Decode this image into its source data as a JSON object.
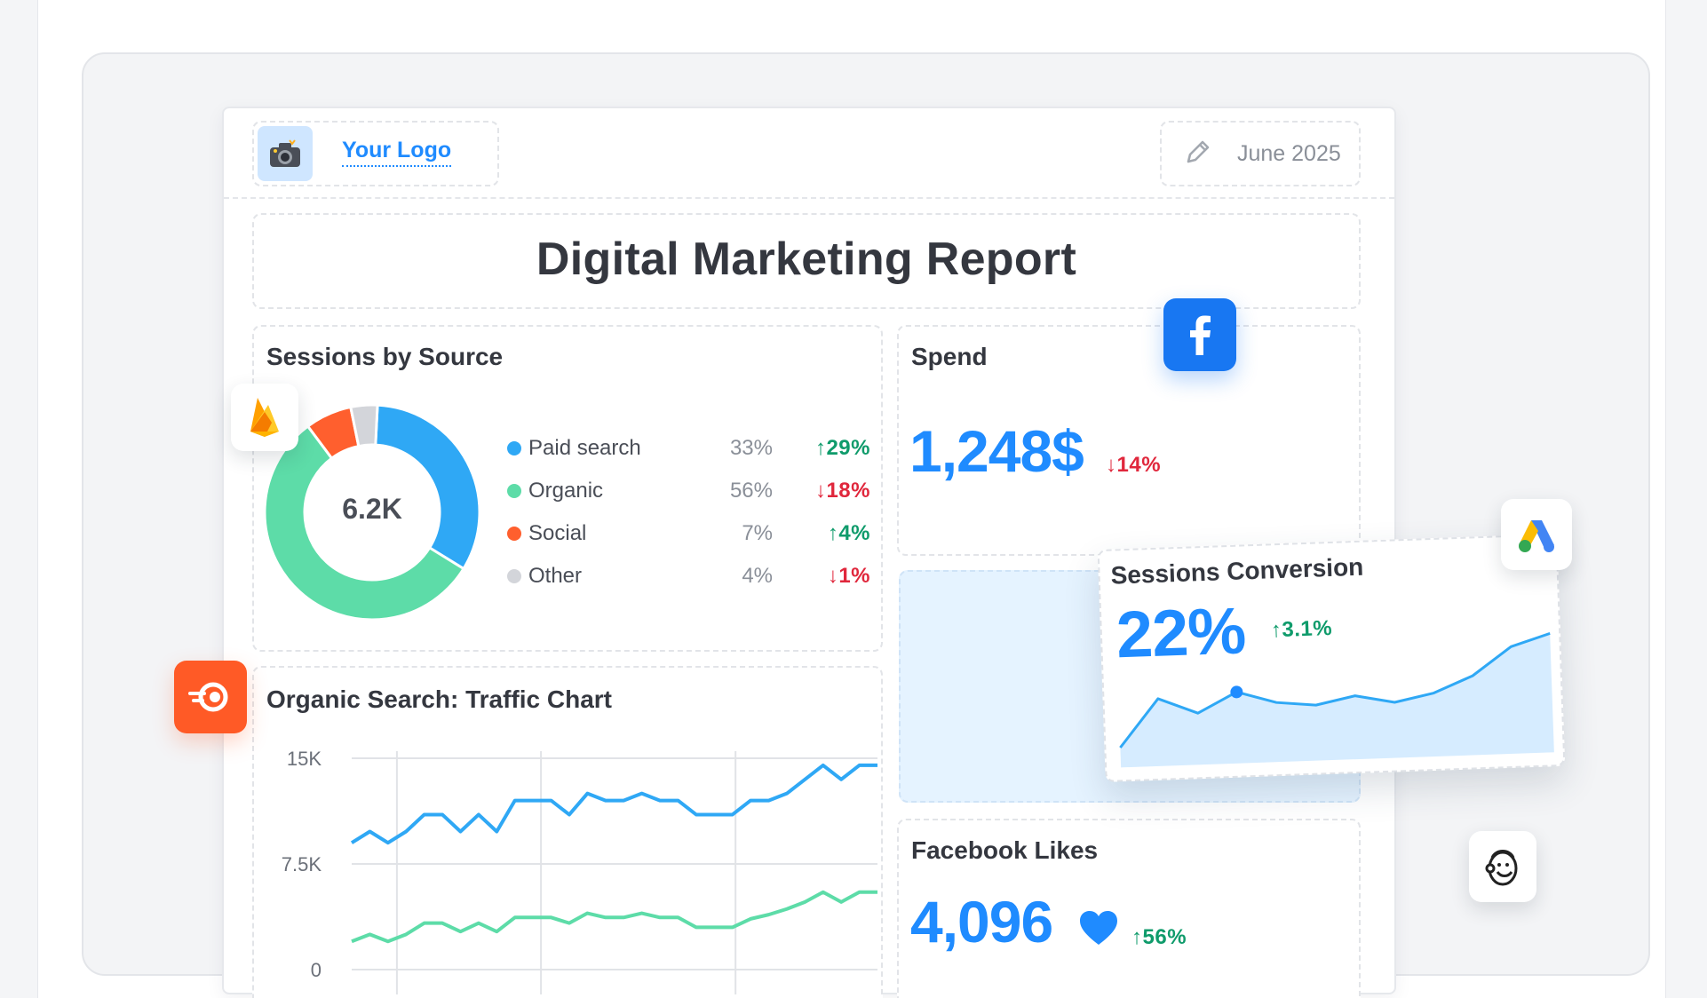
{
  "header": {
    "logo_label": "Your Logo",
    "logo_icon": "camera-icon",
    "date_icon": "pencil-icon",
    "date": "June 2025"
  },
  "title": "Digital Marketing Report",
  "sessions": {
    "title": "Sessions by Source",
    "total": "6.2K",
    "items": [
      {
        "name": "Paid search",
        "share": "33%",
        "change": "29%",
        "direction": "up",
        "color": "#2fa8f5",
        "fraction": 0.33
      },
      {
        "name": "Organic",
        "share": "56%",
        "change": "18%",
        "direction": "down",
        "color": "#5ddca8",
        "fraction": 0.56
      },
      {
        "name": "Social",
        "share": "7%",
        "change": "4%",
        "direction": "up",
        "color": "#ff5f2e",
        "fraction": 0.07
      },
      {
        "name": "Other",
        "share": "4%",
        "change": "1%",
        "direction": "down",
        "color": "#d3d5da",
        "fraction": 0.04
      }
    ]
  },
  "spend": {
    "title": "Spend",
    "value": "1,248$",
    "change": "14%",
    "direction": "down"
  },
  "conversion": {
    "title": "Sessions Conversion",
    "value": "22%",
    "change": "3.1%",
    "direction": "up"
  },
  "likes": {
    "title": "Facebook Likes",
    "value": "4,096",
    "change": "56%",
    "direction": "up",
    "icon": "heart-icon"
  },
  "integrations": [
    "firebase-icon",
    "semrush-icon",
    "facebook-icon",
    "google-ads-icon",
    "mailchimp-icon"
  ],
  "colors": {
    "accent": "#1f8bff",
    "up": "#0f9b6b",
    "down": "#e0273c",
    "paid": "#2fa8f5",
    "organic": "#5ddca8"
  },
  "chart_data": [
    {
      "type": "line",
      "title": "Organic Search: Traffic Chart",
      "ylim": [
        0,
        15000
      ],
      "yticks": [
        "15K",
        "7.5K",
        "0"
      ],
      "ytick_values": [
        15000,
        7500,
        0
      ],
      "grid": true,
      "series": [
        {
          "color": "#2fa8f5",
          "values": [
            9000,
            9800,
            9000,
            9800,
            11000,
            11000,
            9800,
            11000,
            9800,
            12000,
            12000,
            12000,
            11000,
            12500,
            12000,
            12000,
            12500,
            12000,
            12000,
            11000,
            11000,
            11000,
            12000,
            12000,
            12500,
            13500,
            14500,
            13500,
            14500,
            14500
          ]
        },
        {
          "color": "#5ddca8",
          "values": [
            2000,
            2500,
            2000,
            2500,
            3300,
            3300,
            2700,
            3300,
            2700,
            3700,
            3700,
            3700,
            3300,
            4000,
            3700,
            3700,
            4000,
            3700,
            3700,
            3000,
            3000,
            3000,
            3600,
            3900,
            4300,
            4800,
            5500,
            4800,
            5500,
            5500
          ]
        }
      ]
    },
    {
      "type": "area",
      "title": "Sessions Conversion",
      "values": [
        5,
        17,
        13,
        18,
        15,
        14,
        16,
        14,
        16,
        20,
        27,
        30
      ],
      "highlight_index": 3
    }
  ]
}
